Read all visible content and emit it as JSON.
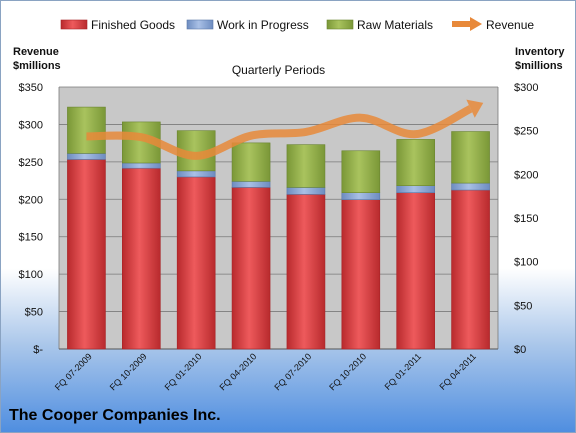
{
  "legend": {
    "finished": "Finished Goods",
    "wip": "Work in Progress",
    "raw": "Raw Materials",
    "revenue": "Revenue"
  },
  "left_axis_title": [
    "Revenue",
    "$millions"
  ],
  "right_axis_title": [
    "Inventory",
    "$millions"
  ],
  "plot_title": "Quarterly Periods",
  "company": "The Cooper Companies Inc.",
  "colors": {
    "finished": "#d9383b",
    "wip": "#7f9fd0",
    "raw": "#8fae45",
    "revenue": "#e8893a",
    "plot_bg": "#c8c8c8"
  },
  "chart_data": {
    "type": "bar",
    "stacked": true,
    "categories": [
      "FQ 07-2009",
      "FQ 10-2009",
      "FQ 01-2010",
      "FQ 04-2010",
      "FQ 07-2010",
      "FQ 10-2010",
      "FQ 01-2011",
      "FQ 04-2011"
    ],
    "left_ticks": [
      "$-",
      "$50",
      "$100",
      "$150",
      "$200",
      "$250",
      "$300",
      "$350"
    ],
    "right_ticks": [
      "$0",
      "$50",
      "$100",
      "$150",
      "$200",
      "$250",
      "$300"
    ],
    "left_ylim": [
      0,
      350
    ],
    "right_ylim": [
      0,
      300
    ],
    "series": [
      {
        "name": "Finished Goods",
        "axis": "right",
        "values": [
          217,
          207,
          197,
          185,
          177,
          171,
          179,
          182
        ]
      },
      {
        "name": "Work in Progress",
        "axis": "right",
        "values": [
          7,
          6,
          7,
          7,
          8,
          8,
          8,
          8
        ]
      },
      {
        "name": "Raw Materials",
        "axis": "right",
        "values": [
          53,
          47,
          46,
          44,
          49,
          48,
          53,
          59
        ]
      },
      {
        "name": "Revenue",
        "axis": "left",
        "type": "line",
        "values": [
          284,
          283,
          258,
          285,
          290,
          309,
          287,
          321
        ]
      }
    ]
  }
}
